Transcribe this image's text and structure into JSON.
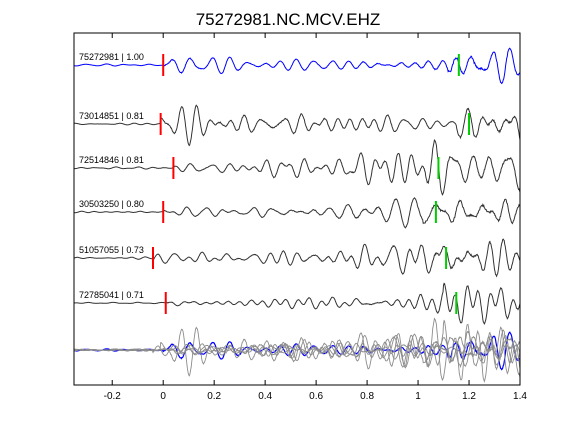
{
  "chart_data": {
    "type": "line",
    "title": "75272981.NC.MCV.EHZ",
    "xlabel": "",
    "ylabel": "",
    "xlim": [
      -0.35,
      1.4
    ],
    "xticks": [
      -0.2,
      0,
      0.2,
      0.4,
      0.6,
      0.8,
      1,
      1.2,
      1.4
    ],
    "xtick_labels": [
      "-0.2",
      "0",
      "0.2",
      "0.4",
      "0.6",
      "0.8",
      "1",
      "1.2",
      "1.4"
    ],
    "grid": false,
    "colors": {
      "reference": "#0000ff",
      "trace": "#333333",
      "overlay": "#8c8c8c",
      "p_pick": "#ff0000",
      "s_pick": "#00cc00"
    },
    "series": [
      {
        "name": "75272981 | 1.00",
        "p_pick": 0.0,
        "s_pick": 1.16,
        "reference": true,
        "seed": 3
      },
      {
        "name": "73014851 | 0.81",
        "p_pick": -0.01,
        "s_pick": 1.2,
        "reference": false,
        "seed": 7
      },
      {
        "name": "72514846 | 0.81",
        "p_pick": 0.04,
        "s_pick": 1.08,
        "reference": false,
        "seed": 11
      },
      {
        "name": "30503250 | 0.80",
        "p_pick": 0.0,
        "s_pick": 1.07,
        "reference": false,
        "seed": 17
      },
      {
        "name": "51057055 | 0.73",
        "p_pick": -0.04,
        "s_pick": 1.11,
        "reference": false,
        "seed": 23
      },
      {
        "name": "72785041 | 0.71",
        "p_pick": 0.01,
        "s_pick": 1.15,
        "reference": false,
        "seed": 29
      }
    ]
  }
}
